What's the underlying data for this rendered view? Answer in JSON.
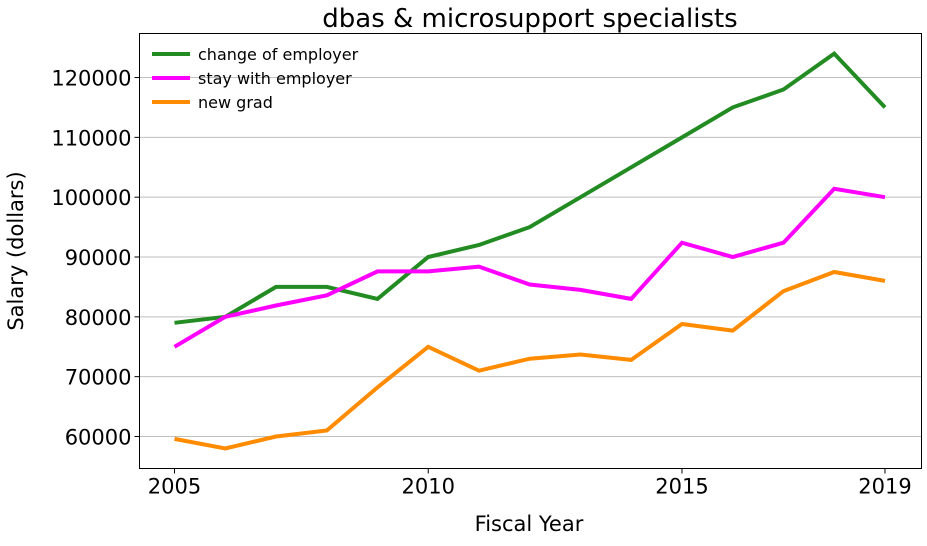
{
  "chart_data": {
    "type": "line",
    "title": "dbas & microsupport specialists",
    "xlabel": "Fiscal Year",
    "ylabel": "Salary (dollars)",
    "x": [
      2005,
      2006,
      2007,
      2008,
      2009,
      2010,
      2011,
      2012,
      2013,
      2014,
      2015,
      2016,
      2017,
      2018,
      2019
    ],
    "xticks": [
      2005,
      2010,
      2015,
      2019
    ],
    "yticks": [
      60000,
      70000,
      80000,
      90000,
      100000,
      110000,
      120000
    ],
    "xlim": [
      2004.31,
      2019.72
    ],
    "ylim": [
      54650,
      127360
    ],
    "grid": "horizontal",
    "legend": "top-left",
    "series": [
      {
        "name": "change of employer",
        "color": "#228b22",
        "values": [
          79000,
          80000,
          85000,
          85000,
          83000,
          90000,
          92000,
          95000,
          100000,
          105000,
          110000,
          115000,
          118000,
          124000,
          115000
        ]
      },
      {
        "name": "stay with employer",
        "color": "#ff00ff",
        "values": [
          75000,
          80000,
          81900,
          83600,
          87600,
          87600,
          88400,
          85400,
          84500,
          83000,
          92400,
          90000,
          92400,
          101400,
          100000
        ]
      },
      {
        "name": "new grad",
        "color": "#ff8c00",
        "values": [
          59600,
          58000,
          60000,
          61000,
          68200,
          75000,
          71000,
          73000,
          73700,
          72800,
          78800,
          77700,
          84300,
          87500,
          86000
        ]
      }
    ]
  }
}
